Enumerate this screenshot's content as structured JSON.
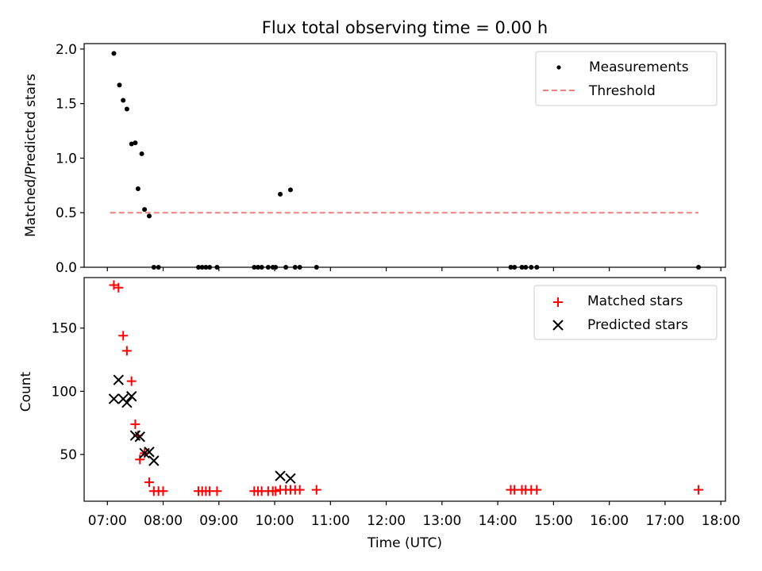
{
  "figure": {
    "title": "Flux total observing time = 0.00 h"
  },
  "colors": {
    "measurements": "#000000",
    "threshold": "#f08080",
    "matched": "#ff0000",
    "predicted": "#000000",
    "axes": "#000000"
  },
  "chart_data": [
    {
      "type": "scatter",
      "title": "Flux total observing time = 0.00 h",
      "xlabel": "",
      "ylabel": "Matched/Predicted stars",
      "xlim": [
        "06:35",
        "18:05"
      ],
      "ylim": [
        0,
        2.05
      ],
      "x_ticks": [
        "07:00",
        "08:00",
        "09:00",
        "10:00",
        "11:00",
        "12:00",
        "13:00",
        "14:00",
        "15:00",
        "16:00",
        "17:00",
        "18:00"
      ],
      "y_ticks": [
        "0.0",
        "0.5",
        "1.0",
        "1.5",
        "2.0"
      ],
      "y_tick_values": [
        0,
        0.5,
        1.0,
        1.5,
        2.0
      ],
      "grid": false,
      "legend_position": "top-right",
      "series": [
        {
          "name": "Measurements",
          "kind": "points",
          "marker": "dot",
          "points": [
            [
              "07:07",
              1.96
            ],
            [
              "07:13",
              1.67
            ],
            [
              "07:17",
              1.53
            ],
            [
              "07:21",
              1.45
            ],
            [
              "07:26",
              1.13
            ],
            [
              "07:30",
              1.14
            ],
            [
              "07:37",
              1.04
            ],
            [
              "07:33",
              0.72
            ],
            [
              "07:40",
              0.53
            ],
            [
              "07:45",
              0.47
            ],
            [
              "07:50",
              0.0
            ],
            [
              "07:55",
              0.0
            ],
            [
              "08:38",
              0.0
            ],
            [
              "08:42",
              0.0
            ],
            [
              "08:46",
              0.0
            ],
            [
              "08:50",
              0.0
            ],
            [
              "08:58",
              0.0
            ],
            [
              "09:38",
              0.0
            ],
            [
              "09:42",
              0.0
            ],
            [
              "09:46",
              0.0
            ],
            [
              "09:53",
              0.0
            ],
            [
              "09:58",
              0.0
            ],
            [
              "10:01",
              0.0
            ],
            [
              "10:06",
              0.67
            ],
            [
              "10:12",
              0.0
            ],
            [
              "10:17",
              0.71
            ],
            [
              "10:22",
              0.0
            ],
            [
              "10:27",
              0.0
            ],
            [
              "10:45",
              0.0
            ],
            [
              "14:14",
              0.0
            ],
            [
              "14:18",
              0.0
            ],
            [
              "14:26",
              0.0
            ],
            [
              "14:30",
              0.0
            ],
            [
              "14:36",
              0.0
            ],
            [
              "14:42",
              0.0
            ],
            [
              "17:36",
              0.0
            ]
          ]
        },
        {
          "name": "Threshold",
          "kind": "dashed-line",
          "points": [
            [
              "07:03",
              0.5
            ],
            [
              "17:36",
              0.5
            ]
          ]
        }
      ]
    },
    {
      "type": "scatter",
      "title": "",
      "xlabel": "Time (UTC)",
      "ylabel": "Count",
      "xlim": [
        "06:35",
        "18:05"
      ],
      "ylim": [
        13,
        190
      ],
      "x_ticks": [
        "07:00",
        "08:00",
        "09:00",
        "10:00",
        "11:00",
        "12:00",
        "13:00",
        "14:00",
        "15:00",
        "16:00",
        "17:00",
        "18:00"
      ],
      "y_ticks": [
        "50",
        "100",
        "150"
      ],
      "y_tick_values": [
        50,
        100,
        150
      ],
      "grid": false,
      "legend_position": "top-right",
      "series": [
        {
          "name": "Matched stars",
          "kind": "points",
          "marker": "plus",
          "points": [
            [
              "07:07",
              184
            ],
            [
              "07:12",
              182
            ],
            [
              "07:17",
              144
            ],
            [
              "07:21",
              132
            ],
            [
              "07:26",
              108
            ],
            [
              "07:30",
              74
            ],
            [
              "07:33",
              65
            ],
            [
              "07:35",
              46
            ],
            [
              "07:40",
              51
            ],
            [
              "07:45",
              28
            ],
            [
              "07:50",
              21
            ],
            [
              "07:55",
              21
            ],
            [
              "08:00",
              21
            ],
            [
              "08:38",
              21
            ],
            [
              "08:42",
              21
            ],
            [
              "08:46",
              21
            ],
            [
              "08:50",
              21
            ],
            [
              "08:58",
              21
            ],
            [
              "09:38",
              21
            ],
            [
              "09:42",
              21
            ],
            [
              "09:46",
              21
            ],
            [
              "09:53",
              21
            ],
            [
              "09:58",
              21
            ],
            [
              "10:01",
              21
            ],
            [
              "10:06",
              22
            ],
            [
              "10:12",
              22
            ],
            [
              "10:17",
              22
            ],
            [
              "10:22",
              22
            ],
            [
              "10:27",
              22
            ],
            [
              "10:45",
              22
            ],
            [
              "14:14",
              22
            ],
            [
              "14:18",
              22
            ],
            [
              "14:26",
              22
            ],
            [
              "14:30",
              22
            ],
            [
              "14:36",
              22
            ],
            [
              "14:42",
              22
            ],
            [
              "17:36",
              22
            ]
          ]
        },
        {
          "name": "Predicted stars",
          "kind": "points",
          "marker": "x",
          "points": [
            [
              "07:07",
              94
            ],
            [
              "07:12",
              109
            ],
            [
              "07:17",
              94
            ],
            [
              "07:21",
              91
            ],
            [
              "07:26",
              96
            ],
            [
              "07:30",
              65
            ],
            [
              "07:35",
              64
            ],
            [
              "07:40",
              51
            ],
            [
              "07:45",
              52
            ],
            [
              "07:50",
              45
            ],
            [
              "10:06",
              33
            ],
            [
              "10:17",
              31
            ]
          ]
        }
      ]
    }
  ]
}
